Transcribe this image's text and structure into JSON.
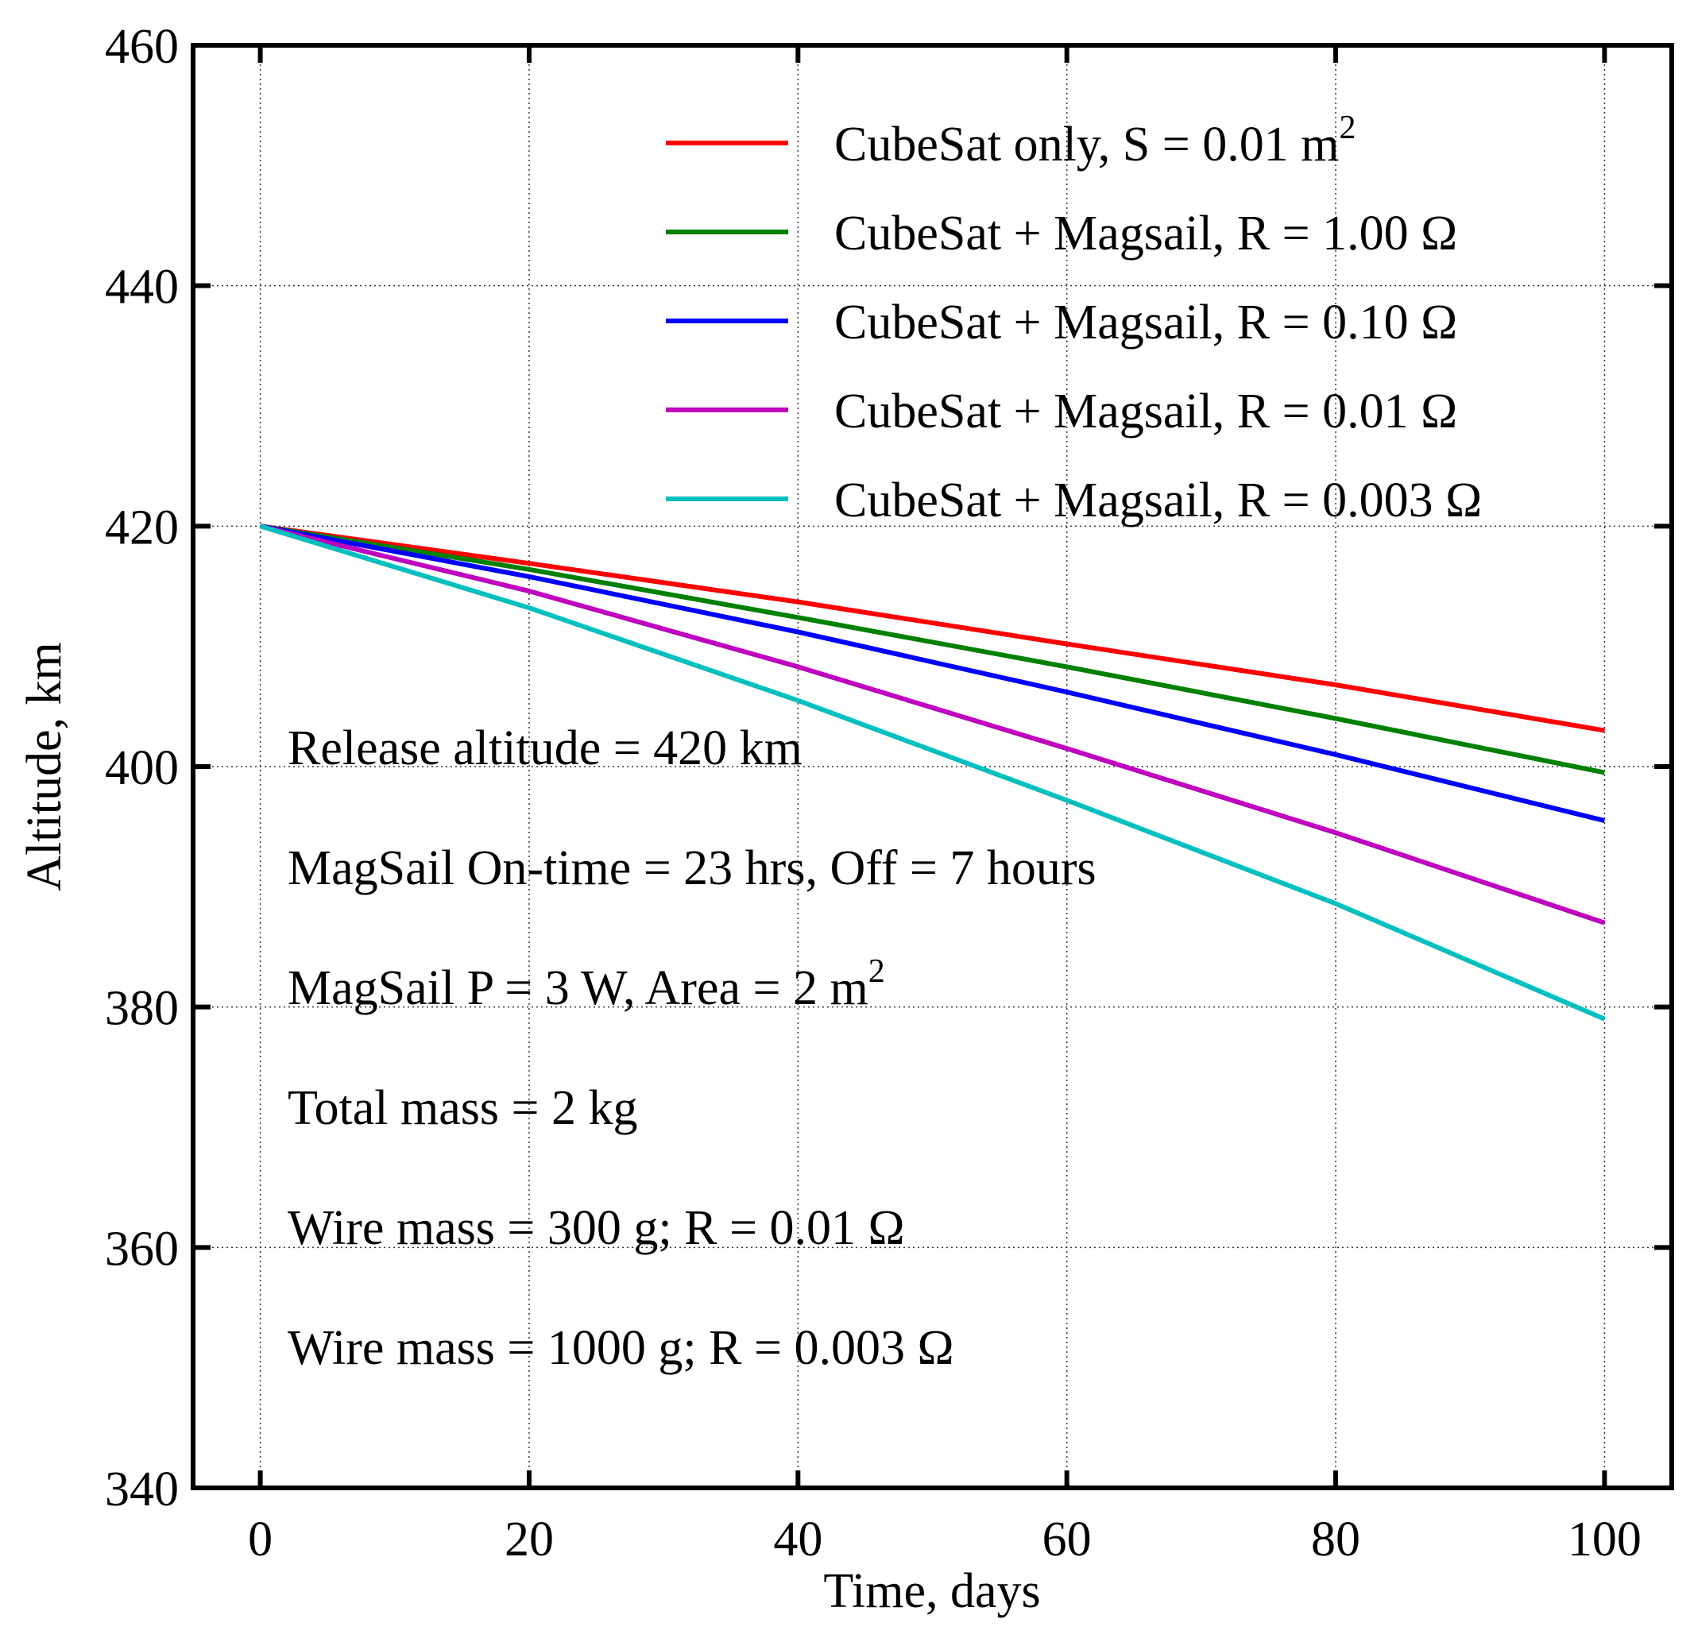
{
  "chart_data": {
    "type": "line",
    "xlabel": "Time, days",
    "ylabel": "Altitude, km",
    "xlim": [
      -5,
      105
    ],
    "ylim": [
      340,
      460
    ],
    "xticks": [
      0,
      20,
      40,
      60,
      80,
      100
    ],
    "yticks": [
      340,
      360,
      380,
      400,
      420,
      440,
      460
    ],
    "grid": true,
    "legend_position": "top-right",
    "series": [
      {
        "name": "CubeSat only, S = 0.01 m",
        "sup": "2",
        "color": "#ff0000",
        "points": [
          [
            0,
            420
          ],
          [
            20,
            416.9
          ],
          [
            40,
            413.7
          ],
          [
            60,
            410.2
          ],
          [
            80,
            406.8
          ],
          [
            100,
            403.0
          ]
        ]
      },
      {
        "name": "CubeSat + Magsail, R = 1.00 Ω",
        "sup": "",
        "color": "#008000",
        "points": [
          [
            0,
            420
          ],
          [
            20,
            416.4
          ],
          [
            40,
            412.4
          ],
          [
            60,
            408.3
          ],
          [
            80,
            404.0
          ],
          [
            100,
            399.5
          ]
        ]
      },
      {
        "name": "CubeSat + Magsail, R = 0.10 Ω",
        "sup": "",
        "color": "#0000ff",
        "points": [
          [
            0,
            420
          ],
          [
            20,
            415.8
          ],
          [
            40,
            411.2
          ],
          [
            60,
            406.2
          ],
          [
            80,
            401.0
          ],
          [
            100,
            395.5
          ]
        ]
      },
      {
        "name": "CubeSat + Magsail, R = 0.01 Ω",
        "sup": "",
        "color": "#bf00bf",
        "points": [
          [
            0,
            420
          ],
          [
            20,
            414.6
          ],
          [
            40,
            408.3
          ],
          [
            60,
            401.5
          ],
          [
            80,
            394.5
          ],
          [
            100,
            387.0
          ]
        ]
      },
      {
        "name": "CubeSat + Magsail, R = 0.003 Ω",
        "sup": "",
        "color": "#00bfbf",
        "points": [
          [
            0,
            420
          ],
          [
            20,
            413.2
          ],
          [
            40,
            405.5
          ],
          [
            60,
            397.2
          ],
          [
            80,
            388.6
          ],
          [
            100,
            379.0
          ]
        ]
      }
    ],
    "annotations": [
      {
        "text": "Release altitude = 420 km",
        "sup": ""
      },
      {
        "text": "MagSail On-time = 23 hrs, Off = 7 hours",
        "sup": ""
      },
      {
        "text": "MagSail P = 3 W, Area = 2 m",
        "sup": "2"
      },
      {
        "text": "Total mass = 2 kg",
        "sup": ""
      },
      {
        "text": "Wire mass = 300 g; R = 0.01 Ω",
        "sup": ""
      },
      {
        "text": "Wire mass = 1000 g; R = 0.003 Ω",
        "sup": ""
      }
    ]
  }
}
